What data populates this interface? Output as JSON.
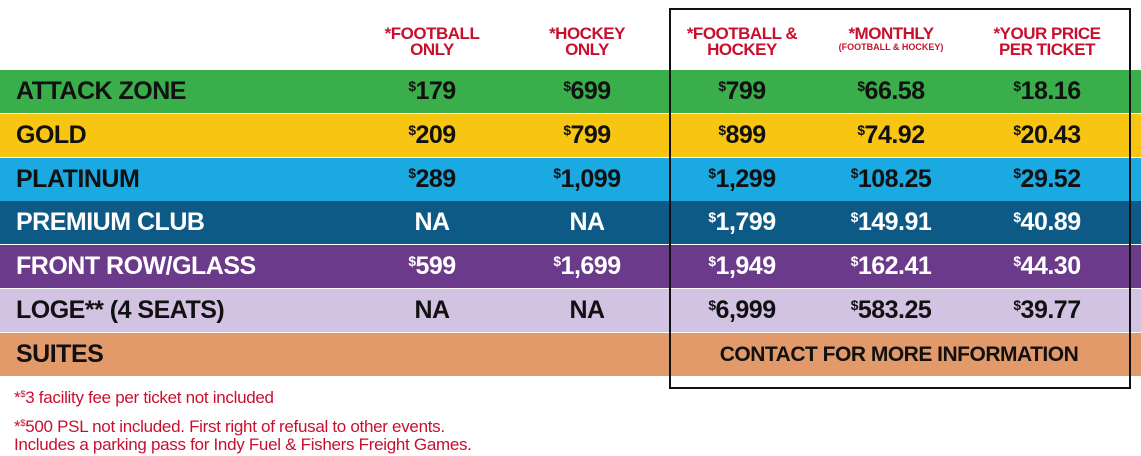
{
  "header": {
    "columns": [
      {
        "title": "*FOOTBALL\nONLY"
      },
      {
        "title": "*HOCKEY\nONLY"
      },
      {
        "title": "*FOOTBALL &\nHOCKEY"
      },
      {
        "title": "*MONTHLY",
        "subtitle": "(FOOTBALL & HOCKEY)"
      },
      {
        "title": "*YOUR PRICE\nPER TICKET"
      }
    ]
  },
  "rows": [
    {
      "label": "ATTACK ZONE",
      "cells": [
        "$179",
        "$699",
        "$799",
        "$66.58",
        "$18.16"
      ]
    },
    {
      "label": "GOLD",
      "cells": [
        "$209",
        "$799",
        "$899",
        "$74.92",
        "$20.43"
      ]
    },
    {
      "label": "PLATINUM",
      "cells": [
        "$289",
        "$1,099",
        "$1,299",
        "$108.25",
        "$29.52"
      ]
    },
    {
      "label": "PREMIUM CLUB",
      "cells": [
        "NA",
        "NA",
        "$1,799",
        "$149.91",
        "$40.89"
      ]
    },
    {
      "label": "FRONT ROW/GLASS",
      "cells": [
        "$599",
        "$1,699",
        "$1,949",
        "$162.41",
        "$44.30"
      ]
    },
    {
      "label": "LOGE** (4 SEATS)",
      "cells": [
        "NA",
        "NA",
        "$6,999",
        "$583.25",
        "$39.77"
      ]
    }
  ],
  "suites": {
    "label": "SUITES",
    "note": "CONTACT FOR MORE INFORMATION"
  },
  "footnotes": [
    "*$3 facility fee per ticket not included",
    "*$500 PSL not included. First right of refusal to other events.\n Includes a parking pass for Indy Fuel & Fishers Freight Games."
  ]
}
